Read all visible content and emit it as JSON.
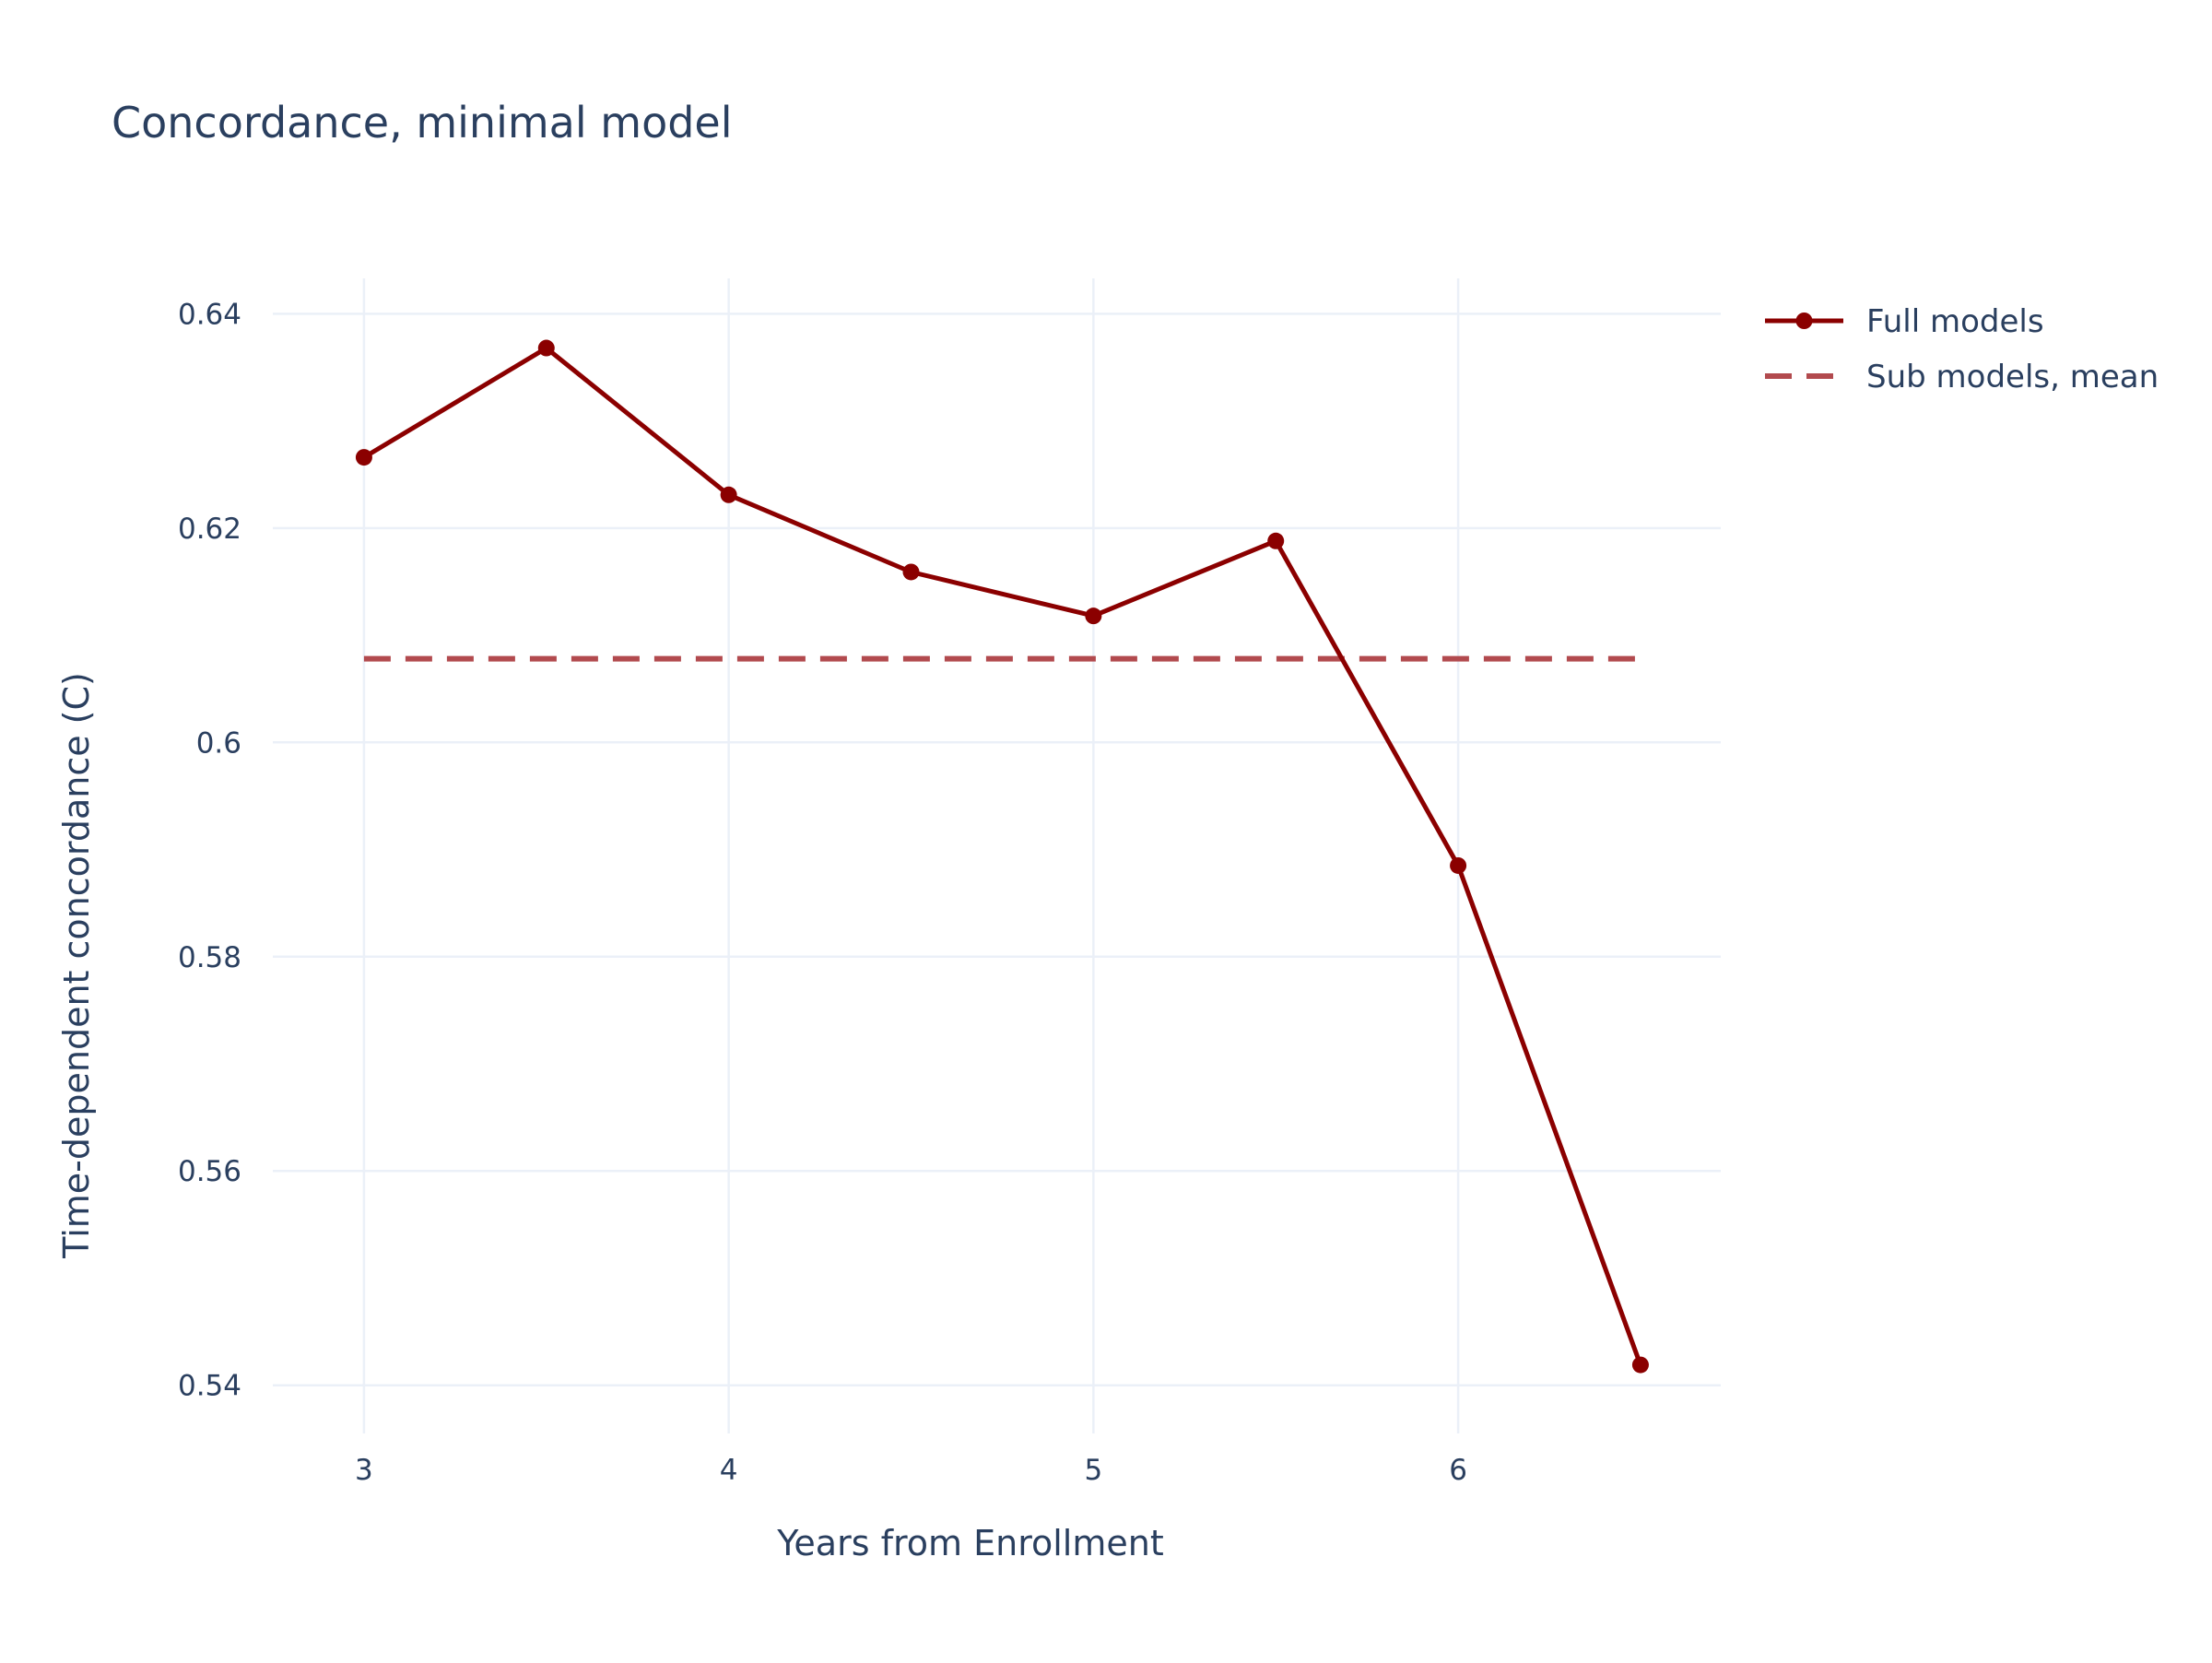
{
  "chart_data": {
    "type": "line",
    "title": "Concordance, minimal model",
    "xlabel": "Years from Enrollment",
    "ylabel": "Time-dependent concordance (C)",
    "xlim": [
      2.75,
      6.72
    ],
    "ylim": [
      0.5355,
      0.6433
    ],
    "x_ticks": [
      3,
      4,
      5,
      6
    ],
    "x_tick_labels": [
      "3",
      "4",
      "5",
      "6"
    ],
    "y_ticks": [
      0.54,
      0.56,
      0.58,
      0.6,
      0.62,
      0.64
    ],
    "y_tick_labels": [
      "0.54",
      "0.56",
      "0.58",
      "0.6",
      "0.62",
      "0.64"
    ],
    "grid": true,
    "legend_position": "top-right",
    "series": [
      {
        "name": "Full models",
        "style": "solid-with-markers",
        "color": "#8b0000",
        "x": [
          3,
          3.5,
          4,
          4.5,
          5,
          5.5,
          6,
          6.5
        ],
        "y": [
          0.6266,
          0.6368,
          0.6231,
          0.6159,
          0.6118,
          0.6188,
          0.5885,
          0.5419
        ]
      },
      {
        "name": "Sub models, mean",
        "style": "dashed",
        "color": "#b24a4e",
        "x": [
          3,
          6.5
        ],
        "y": [
          0.6078,
          0.6078
        ]
      }
    ]
  }
}
